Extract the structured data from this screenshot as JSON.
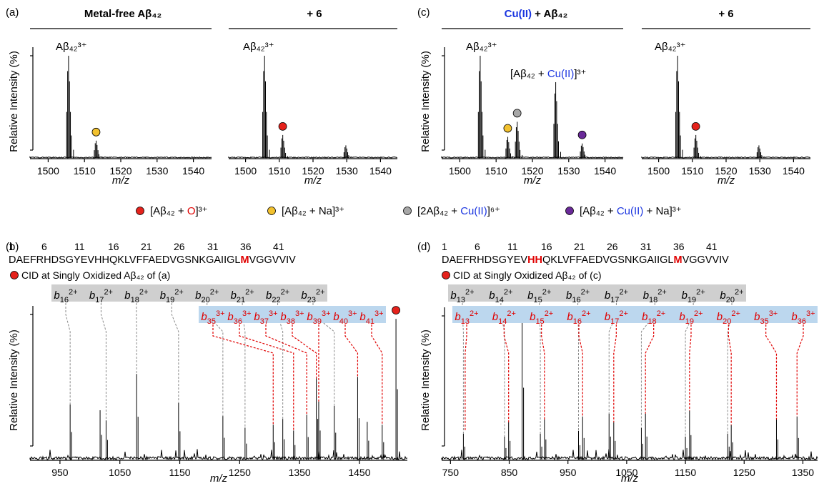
{
  "colors": {
    "red_dot": "#e5221c",
    "yellow_dot": "#f2c12e",
    "gray_dot": "#a7a7a7",
    "purple_dot": "#6a2a99",
    "cu_blue": "#1a35e0",
    "gray_band": "#cfcfcf",
    "blue_band": "#bcd7ee",
    "frag_red": "#e00000"
  },
  "panel_letters": {
    "a": "(a)",
    "b": "(b)",
    "c": "(c)",
    "d": "(d)"
  },
  "top_titles": {
    "a_main": "Metal-free Aβ₄₂",
    "a_right": "+ 6",
    "c_cu": "Cu(II)",
    "c_rest": " + Aβ₄₂",
    "c_right": "+ 6"
  },
  "ylabel": "Relative Intensity (%)",
  "xlabel": "m/z",
  "peak_labels": {
    "main": "Aβ₄₂³⁺",
    "cu_pre": "[Aβ₄₂ + ",
    "cu_cu": "Cu(II)",
    "cu_post": "]³⁺"
  },
  "legend": {
    "l1_a": "[Aβ₄₂ + ",
    "l1_b": "O",
    "l1_c": "]³⁺",
    "l2": "[Aβ₄₂ + Na]³⁺",
    "l3_a": "[2Aβ₄₂ + ",
    "l3_b": "Cu(II)",
    "l3_c": "]⁶⁺",
    "l4_a": "[Aβ₄₂ + ",
    "l4_b": "Cu(II)",
    "l4_c": " + Na]³⁺"
  },
  "sequence": {
    "numbers": [
      "1",
      "6",
      "11",
      "16",
      "21",
      "26",
      "31",
      "36",
      "41"
    ],
    "b_pre": "DAEFRHDSGYEVHHQKLVFFAEDVGSNKGAIIGL",
    "b_m": "M",
    "b_post": "VGGVVIV",
    "d_pre": "DAEFRHDSGYEV",
    "d_hh": "HH",
    "d_mid": "QKLVFFAEDVGSNKGAIIGL",
    "d_m": "M",
    "d_post": "VGGVVIV",
    "cid_b": "CID at Singly Oxidized Aβ₄₂ of (a)",
    "cid_d": "CID at Singly Oxidized Aβ₄₂ of (c)"
  },
  "chart_data": [
    {
      "id": "a-left",
      "type": "line",
      "title": "Metal-free Aβ₄₂",
      "xlabel": "m/z",
      "ylabel": "Relative Intensity (%)",
      "xlim": [
        1495,
        1545
      ],
      "xticks": [
        1500,
        1510,
        1520,
        1530,
        1540
      ],
      "peaks": [
        {
          "x": 1505.4,
          "y": 100
        },
        {
          "x": 1513.0,
          "y": 10,
          "marker": "Na"
        }
      ]
    },
    {
      "id": "a-right",
      "type": "line",
      "title": "+ 6",
      "xlabel": "m/z",
      "xlim": [
        1495,
        1545
      ],
      "xticks": [
        1500,
        1510,
        1520,
        1530,
        1540
      ],
      "peaks": [
        {
          "x": 1505.4,
          "y": 100
        },
        {
          "x": 1510.8,
          "y": 16,
          "marker": "O"
        },
        {
          "x": 1529.5,
          "y": 5
        }
      ]
    },
    {
      "id": "c-left",
      "type": "line",
      "title": "Cu(II) + Aβ₄₂",
      "xlabel": "m/z",
      "ylabel": "Relative Intensity (%)",
      "xlim": [
        1495,
        1545
      ],
      "xticks": [
        1500,
        1510,
        1520,
        1530,
        1540
      ],
      "peaks": [
        {
          "x": 1505.4,
          "y": 100
        },
        {
          "x": 1513.0,
          "y": 14,
          "marker": "Na"
        },
        {
          "x": 1515.6,
          "y": 30,
          "marker": "2Cu"
        },
        {
          "x": 1526.2,
          "y": 72
        },
        {
          "x": 1533.5,
          "y": 7,
          "marker": "CuNa"
        }
      ]
    },
    {
      "id": "c-right",
      "type": "line",
      "title": "+ 6",
      "xlabel": "m/z",
      "xlim": [
        1495,
        1545
      ],
      "xticks": [
        1500,
        1510,
        1520,
        1530,
        1540
      ],
      "peaks": [
        {
          "x": 1505.4,
          "y": 100
        },
        {
          "x": 1510.8,
          "y": 16,
          "marker": "O"
        },
        {
          "x": 1529.5,
          "y": 5
        }
      ]
    },
    {
      "id": "b",
      "type": "line",
      "xlabel": "m/z",
      "ylabel": "Relative Intensity (%)",
      "xlim": [
        900,
        1530
      ],
      "xticks": [
        950,
        1050,
        1150,
        1250,
        1350,
        1450
      ],
      "peaks": [
        {
          "x": 967,
          "y": 38
        },
        {
          "x": 1017,
          "y": 34
        },
        {
          "x": 1027,
          "y": 27
        },
        {
          "x": 1078,
          "y": 59
        },
        {
          "x": 1148,
          "y": 39
        },
        {
          "x": 1222,
          "y": 30
        },
        {
          "x": 1259,
          "y": 22
        },
        {
          "x": 1306,
          "y": 24
        },
        {
          "x": 1322,
          "y": 28
        },
        {
          "x": 1340,
          "y": 20
        },
        {
          "x": 1362,
          "y": 31
        },
        {
          "x": 1378,
          "y": 56
        },
        {
          "x": 1382,
          "y": 40
        },
        {
          "x": 1408,
          "y": 37
        },
        {
          "x": 1447,
          "y": 57
        },
        {
          "x": 1463,
          "y": 26
        },
        {
          "x": 1488,
          "y": 24
        },
        {
          "x": 1511,
          "y": 97,
          "marker": "O"
        }
      ],
      "gray_labels": [
        {
          "ion": "b",
          "n": "16",
          "z": "2+",
          "x": 967
        },
        {
          "ion": "b",
          "n": "17",
          "z": "2+",
          "x": 1027
        },
        {
          "ion": "b",
          "n": "18",
          "z": "2+",
          "x": 1078
        },
        {
          "ion": "b",
          "n": "19",
          "z": "2+",
          "x": 1148
        },
        {
          "ion": "b",
          "n": "20",
          "z": "2+",
          "x": 1222
        },
        {
          "ion": "b",
          "n": "21",
          "z": "2+",
          "x": 1259
        },
        {
          "ion": "b",
          "n": "22",
          "z": "2+",
          "x": 1322
        },
        {
          "ion": "b",
          "n": "23",
          "z": "2+",
          "x": 1408
        }
      ],
      "red_labels": [
        {
          "ion": "b",
          "n": "35",
          "z": "3+",
          "x": 1306
        },
        {
          "ion": "b",
          "n": "36",
          "z": "3+",
          "x": 1340
        },
        {
          "ion": "b",
          "n": "37",
          "z": "3+",
          "x": 1362
        },
        {
          "ion": "b",
          "n": "38",
          "z": "3+",
          "x": 1378
        },
        {
          "ion": "b",
          "n": "39",
          "z": "3+",
          "x": 1382
        },
        {
          "ion": "b",
          "n": "40",
          "z": "3+",
          "x": 1447
        },
        {
          "ion": "b",
          "n": "41",
          "z": "3+",
          "x": 1488
        }
      ]
    },
    {
      "id": "d",
      "type": "line",
      "xlabel": "m/z",
      "ylabel": "Relative Intensity (%)",
      "xlim": [
        735,
        1375
      ],
      "xticks": [
        750,
        850,
        950,
        1050,
        1150,
        1250,
        1350
      ],
      "peaks": [
        {
          "x": 772,
          "y": 18
        },
        {
          "x": 842,
          "y": 16
        },
        {
          "x": 849,
          "y": 26
        },
        {
          "x": 872,
          "y": 100
        },
        {
          "x": 903,
          "y": 18
        },
        {
          "x": 910,
          "y": 28
        },
        {
          "x": 968,
          "y": 20
        },
        {
          "x": 975,
          "y": 30
        },
        {
          "x": 1020,
          "y": 32
        },
        {
          "x": 1028,
          "y": 26
        },
        {
          "x": 1075,
          "y": 22
        },
        {
          "x": 1082,
          "y": 32
        },
        {
          "x": 1150,
          "y": 16
        },
        {
          "x": 1157,
          "y": 34
        },
        {
          "x": 1222,
          "y": 18
        },
        {
          "x": 1228,
          "y": 24
        },
        {
          "x": 1305,
          "y": 28
        },
        {
          "x": 1340,
          "y": 30
        }
      ],
      "gray_labels": [
        {
          "ion": "b",
          "n": "13",
          "z": "2+",
          "x": 772
        },
        {
          "ion": "b",
          "n": "14",
          "z": "2+",
          "x": 842
        },
        {
          "ion": "b",
          "n": "15",
          "z": "2+",
          "x": 903
        },
        {
          "ion": "b",
          "n": "16",
          "z": "2+",
          "x": 968
        },
        {
          "ion": "b",
          "n": "17",
          "z": "2+",
          "x": 1020
        },
        {
          "ion": "b",
          "n": "18",
          "z": "2+",
          "x": 1075
        },
        {
          "ion": "b",
          "n": "19",
          "z": "2+",
          "x": 1150
        },
        {
          "ion": "b",
          "n": "20",
          "z": "2+",
          "x": 1222
        }
      ],
      "red_labels": [
        {
          "ion": "b",
          "n": "13",
          "z": "2+",
          "x": 775
        },
        {
          "ion": "b",
          "n": "14",
          "z": "2+",
          "x": 849
        },
        {
          "ion": "b",
          "n": "15",
          "z": "2+",
          "x": 910
        },
        {
          "ion": "b",
          "n": "16",
          "z": "2+",
          "x": 975
        },
        {
          "ion": "b",
          "n": "17",
          "z": "2+",
          "x": 1028
        },
        {
          "ion": "b",
          "n": "18",
          "z": "2+",
          "x": 1082
        },
        {
          "ion": "b",
          "n": "19",
          "z": "2+",
          "x": 1157
        },
        {
          "ion": "b",
          "n": "20",
          "z": "2+",
          "x": 1228
        },
        {
          "ion": "b",
          "n": "35",
          "z": "3+",
          "x": 1305
        },
        {
          "ion": "b",
          "n": "36",
          "z": "3+",
          "x": 1340
        }
      ]
    }
  ]
}
